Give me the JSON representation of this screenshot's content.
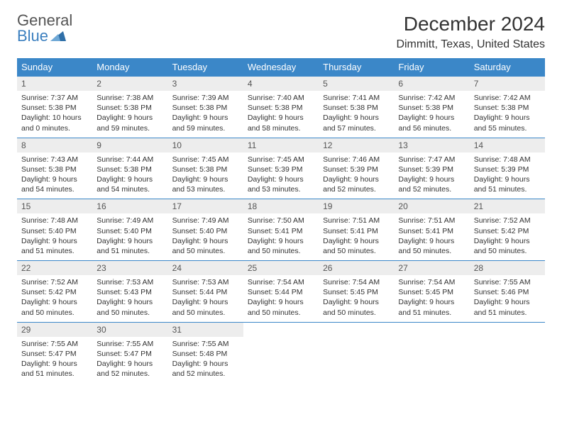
{
  "logo": {
    "line1": "General",
    "line2": "Blue",
    "icon_color": "#2f6fa8"
  },
  "header": {
    "month_title": "December 2024",
    "location": "Dimmitt, Texas, United States"
  },
  "calendar": {
    "header_bg": "#3b87c8",
    "header_text_color": "#ffffff",
    "daynum_bg": "#ededed",
    "border_color": "#3b87c8",
    "day_headers": [
      "Sunday",
      "Monday",
      "Tuesday",
      "Wednesday",
      "Thursday",
      "Friday",
      "Saturday"
    ],
    "weeks": [
      [
        {
          "num": "1",
          "sunrise": "Sunrise: 7:37 AM",
          "sunset": "Sunset: 5:38 PM",
          "daylight": "Daylight: 10 hours and 0 minutes."
        },
        {
          "num": "2",
          "sunrise": "Sunrise: 7:38 AM",
          "sunset": "Sunset: 5:38 PM",
          "daylight": "Daylight: 9 hours and 59 minutes."
        },
        {
          "num": "3",
          "sunrise": "Sunrise: 7:39 AM",
          "sunset": "Sunset: 5:38 PM",
          "daylight": "Daylight: 9 hours and 59 minutes."
        },
        {
          "num": "4",
          "sunrise": "Sunrise: 7:40 AM",
          "sunset": "Sunset: 5:38 PM",
          "daylight": "Daylight: 9 hours and 58 minutes."
        },
        {
          "num": "5",
          "sunrise": "Sunrise: 7:41 AM",
          "sunset": "Sunset: 5:38 PM",
          "daylight": "Daylight: 9 hours and 57 minutes."
        },
        {
          "num": "6",
          "sunrise": "Sunrise: 7:42 AM",
          "sunset": "Sunset: 5:38 PM",
          "daylight": "Daylight: 9 hours and 56 minutes."
        },
        {
          "num": "7",
          "sunrise": "Sunrise: 7:42 AM",
          "sunset": "Sunset: 5:38 PM",
          "daylight": "Daylight: 9 hours and 55 minutes."
        }
      ],
      [
        {
          "num": "8",
          "sunrise": "Sunrise: 7:43 AM",
          "sunset": "Sunset: 5:38 PM",
          "daylight": "Daylight: 9 hours and 54 minutes."
        },
        {
          "num": "9",
          "sunrise": "Sunrise: 7:44 AM",
          "sunset": "Sunset: 5:38 PM",
          "daylight": "Daylight: 9 hours and 54 minutes."
        },
        {
          "num": "10",
          "sunrise": "Sunrise: 7:45 AM",
          "sunset": "Sunset: 5:38 PM",
          "daylight": "Daylight: 9 hours and 53 minutes."
        },
        {
          "num": "11",
          "sunrise": "Sunrise: 7:45 AM",
          "sunset": "Sunset: 5:39 PM",
          "daylight": "Daylight: 9 hours and 53 minutes."
        },
        {
          "num": "12",
          "sunrise": "Sunrise: 7:46 AM",
          "sunset": "Sunset: 5:39 PM",
          "daylight": "Daylight: 9 hours and 52 minutes."
        },
        {
          "num": "13",
          "sunrise": "Sunrise: 7:47 AM",
          "sunset": "Sunset: 5:39 PM",
          "daylight": "Daylight: 9 hours and 52 minutes."
        },
        {
          "num": "14",
          "sunrise": "Sunrise: 7:48 AM",
          "sunset": "Sunset: 5:39 PM",
          "daylight": "Daylight: 9 hours and 51 minutes."
        }
      ],
      [
        {
          "num": "15",
          "sunrise": "Sunrise: 7:48 AM",
          "sunset": "Sunset: 5:40 PM",
          "daylight": "Daylight: 9 hours and 51 minutes."
        },
        {
          "num": "16",
          "sunrise": "Sunrise: 7:49 AM",
          "sunset": "Sunset: 5:40 PM",
          "daylight": "Daylight: 9 hours and 51 minutes."
        },
        {
          "num": "17",
          "sunrise": "Sunrise: 7:49 AM",
          "sunset": "Sunset: 5:40 PM",
          "daylight": "Daylight: 9 hours and 50 minutes."
        },
        {
          "num": "18",
          "sunrise": "Sunrise: 7:50 AM",
          "sunset": "Sunset: 5:41 PM",
          "daylight": "Daylight: 9 hours and 50 minutes."
        },
        {
          "num": "19",
          "sunrise": "Sunrise: 7:51 AM",
          "sunset": "Sunset: 5:41 PM",
          "daylight": "Daylight: 9 hours and 50 minutes."
        },
        {
          "num": "20",
          "sunrise": "Sunrise: 7:51 AM",
          "sunset": "Sunset: 5:41 PM",
          "daylight": "Daylight: 9 hours and 50 minutes."
        },
        {
          "num": "21",
          "sunrise": "Sunrise: 7:52 AM",
          "sunset": "Sunset: 5:42 PM",
          "daylight": "Daylight: 9 hours and 50 minutes."
        }
      ],
      [
        {
          "num": "22",
          "sunrise": "Sunrise: 7:52 AM",
          "sunset": "Sunset: 5:42 PM",
          "daylight": "Daylight: 9 hours and 50 minutes."
        },
        {
          "num": "23",
          "sunrise": "Sunrise: 7:53 AM",
          "sunset": "Sunset: 5:43 PM",
          "daylight": "Daylight: 9 hours and 50 minutes."
        },
        {
          "num": "24",
          "sunrise": "Sunrise: 7:53 AM",
          "sunset": "Sunset: 5:44 PM",
          "daylight": "Daylight: 9 hours and 50 minutes."
        },
        {
          "num": "25",
          "sunrise": "Sunrise: 7:54 AM",
          "sunset": "Sunset: 5:44 PM",
          "daylight": "Daylight: 9 hours and 50 minutes."
        },
        {
          "num": "26",
          "sunrise": "Sunrise: 7:54 AM",
          "sunset": "Sunset: 5:45 PM",
          "daylight": "Daylight: 9 hours and 50 minutes."
        },
        {
          "num": "27",
          "sunrise": "Sunrise: 7:54 AM",
          "sunset": "Sunset: 5:45 PM",
          "daylight": "Daylight: 9 hours and 51 minutes."
        },
        {
          "num": "28",
          "sunrise": "Sunrise: 7:55 AM",
          "sunset": "Sunset: 5:46 PM",
          "daylight": "Daylight: 9 hours and 51 minutes."
        }
      ],
      [
        {
          "num": "29",
          "sunrise": "Sunrise: 7:55 AM",
          "sunset": "Sunset: 5:47 PM",
          "daylight": "Daylight: 9 hours and 51 minutes."
        },
        {
          "num": "30",
          "sunrise": "Sunrise: 7:55 AM",
          "sunset": "Sunset: 5:47 PM",
          "daylight": "Daylight: 9 hours and 52 minutes."
        },
        {
          "num": "31",
          "sunrise": "Sunrise: 7:55 AM",
          "sunset": "Sunset: 5:48 PM",
          "daylight": "Daylight: 9 hours and 52 minutes."
        },
        null,
        null,
        null,
        null
      ]
    ]
  }
}
